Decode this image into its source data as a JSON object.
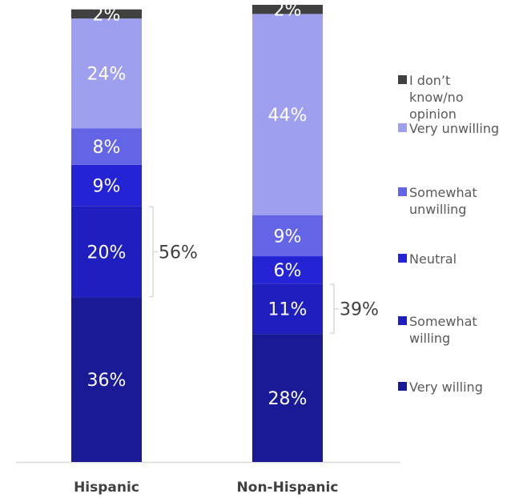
{
  "chart_data": {
    "type": "bar",
    "stacked": true,
    "categories": [
      "Hispanic",
      "Non-Hispanic"
    ],
    "series": [
      {
        "name": "Very willing",
        "values": [
          36,
          28
        ],
        "labels": [
          "36%",
          "28%"
        ],
        "color": "#1a1a96"
      },
      {
        "name": "Somewhat willing",
        "values": [
          20,
          11
        ],
        "labels": [
          "20%",
          "11%"
        ],
        "color": "#1f1fbf"
      },
      {
        "name": "Neutral",
        "values": [
          9,
          6
        ],
        "labels": [
          "9%",
          "6%"
        ],
        "color": "#2424d6"
      },
      {
        "name": "Somewhat unwilling",
        "values": [
          8,
          9
        ],
        "labels": [
          "8%",
          "9%"
        ],
        "color": "#6464e6"
      },
      {
        "name": "Very unwilling",
        "values": [
          24,
          44
        ],
        "labels": [
          "24%",
          "44%"
        ],
        "color": "#9f9ff0"
      },
      {
        "name": "I don’t know/no opinion",
        "values": [
          2,
          2
        ],
        "labels": [
          "2%",
          "2%"
        ],
        "color": "#404040"
      }
    ],
    "brackets": [
      {
        "category": "Hispanic",
        "label": "56%",
        "value": 56
      },
      {
        "category": "Non-Hispanic",
        "label": "39%",
        "value": 39
      }
    ],
    "legend_position": "right",
    "grid": false
  },
  "legend": {
    "items": [
      {
        "lines": [
          "I don’t",
          "know/no",
          "opinion"
        ],
        "color": "#404040"
      },
      {
        "lines": [
          "Very unwilling"
        ],
        "color": "#9f9ff0"
      },
      {
        "lines": [
          "Somewhat",
          "unwilling"
        ],
        "color": "#6464e6"
      },
      {
        "lines": [
          "Neutral"
        ],
        "color": "#2424d6"
      },
      {
        "lines": [
          "Somewhat",
          "willing"
        ],
        "color": "#1f1fbf"
      },
      {
        "lines": [
          "Very willing"
        ],
        "color": "#1a1a96"
      }
    ]
  }
}
